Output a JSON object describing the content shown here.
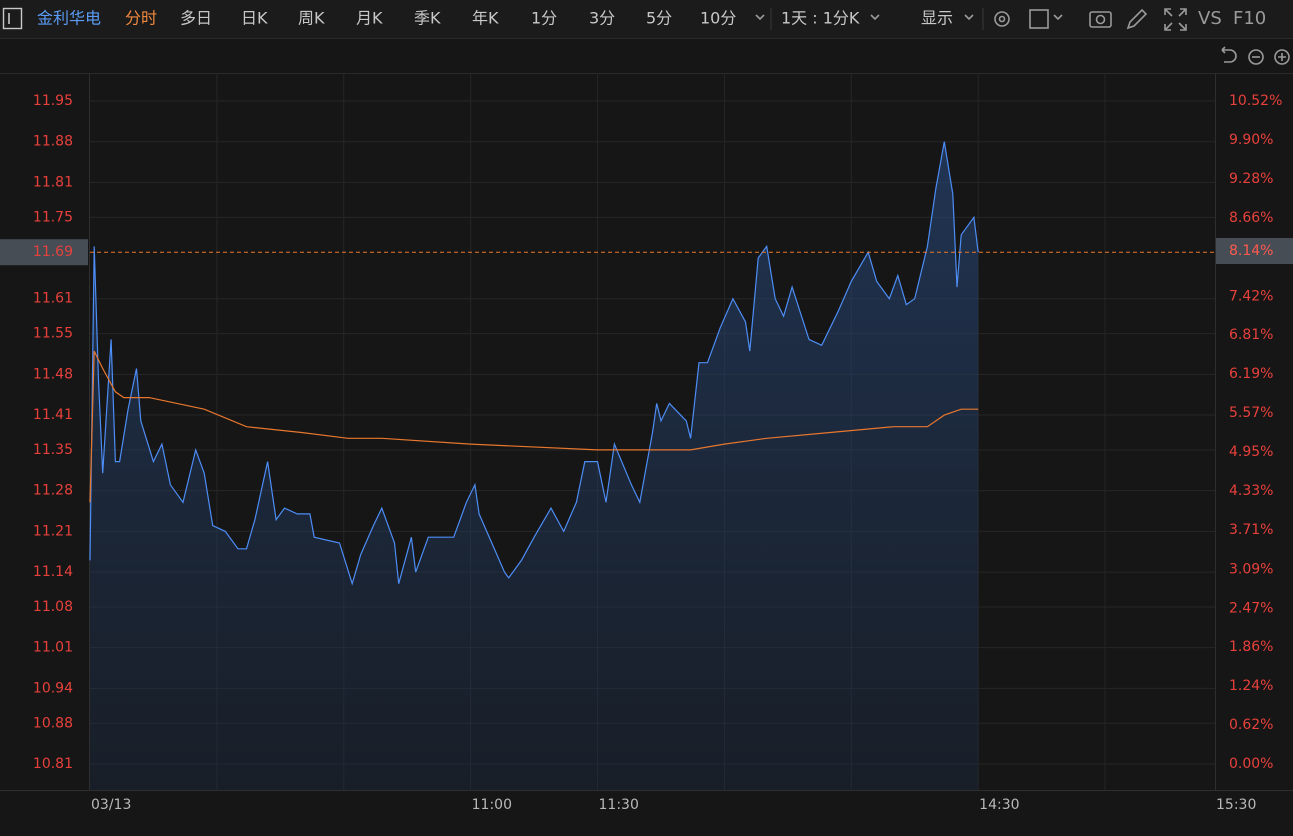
{
  "toolbar": {
    "stock": "金利华电",
    "active": "分时",
    "periods": [
      "多日",
      "日K",
      "周K",
      "月K",
      "季K",
      "年K",
      "1分",
      "3分",
      "5分",
      "10分"
    ],
    "range": "1天 : 1分K",
    "display": "显示",
    "vs": "VS",
    "f10": "F10"
  },
  "chart_data": {
    "type": "line",
    "xlim": [
      0,
      266
    ],
    "xticks": [
      {
        "value": 0,
        "label": "03/13"
      },
      {
        "value": 30,
        "label": null
      },
      {
        "value": 60,
        "label": null
      },
      {
        "value": 90,
        "label": "11:00"
      },
      {
        "value": 120,
        "label": "11:30"
      },
      {
        "value": 150,
        "label": null
      },
      {
        "value": 180,
        "label": null
      },
      {
        "value": 210,
        "label": "14:30"
      },
      {
        "value": 240,
        "label": null
      },
      {
        "value": 266,
        "label": "15:30"
      }
    ],
    "ylim": [
      10.81,
      11.95
    ],
    "yticks": [
      10.81,
      10.88,
      10.94,
      11.01,
      11.08,
      11.14,
      11.21,
      11.28,
      11.35,
      11.41,
      11.48,
      11.55,
      11.61,
      11.75,
      11.81,
      11.88,
      11.95
    ],
    "y2lim": [
      0,
      10.52
    ],
    "y2ticks": [
      {
        "value": 0,
        "label": "0.00%"
      },
      {
        "value": 0.62,
        "label": "0.62%"
      },
      {
        "value": 1.24,
        "label": "1.24%"
      },
      {
        "value": 1.86,
        "label": "1.86%"
      },
      {
        "value": 2.47,
        "label": "2.47%"
      },
      {
        "value": 3.09,
        "label": "3.09%"
      },
      {
        "value": 3.71,
        "label": "3.71%"
      },
      {
        "value": 4.33,
        "label": "4.33%"
      },
      {
        "value": 4.95,
        "label": "4.95%"
      },
      {
        "value": 5.57,
        "label": "5.57%"
      },
      {
        "value": 6.19,
        "label": "6.19%"
      },
      {
        "value": 6.81,
        "label": "6.81%"
      },
      {
        "value": 7.42,
        "label": "7.42%"
      },
      {
        "value": 8.66,
        "label": "8.66%"
      },
      {
        "value": 9.28,
        "label": "9.28%"
      },
      {
        "value": 9.9,
        "label": "9.90%"
      },
      {
        "value": 10.52,
        "label": "10.52%"
      }
    ],
    "current_price": 11.69,
    "current_percent": {
      "value": 8.14,
      "label": "8.14%"
    },
    "grid": true,
    "series": [
      {
        "color": "#4d8df6",
        "x": [
          0,
          1,
          2,
          3,
          5,
          6,
          7,
          9,
          11,
          12,
          15,
          17,
          19,
          22,
          25,
          27,
          29,
          32,
          35,
          37,
          39,
          42,
          44,
          46,
          49,
          52,
          53,
          59,
          62,
          64,
          67,
          69,
          72,
          73,
          76,
          77,
          80,
          86,
          89,
          91,
          92,
          95,
          98,
          99,
          102,
          105,
          109,
          112,
          115,
          117,
          120,
          122,
          124,
          128,
          130,
          133,
          134,
          135,
          137,
          141,
          142,
          144,
          146,
          149,
          152,
          155,
          156,
          158,
          160,
          162,
          164,
          166,
          170,
          173,
          177,
          180,
          184,
          186,
          189,
          191,
          193,
          195,
          198,
          200,
          202,
          204,
          205,
          206,
          209,
          210
        ],
        "values": [
          11.16,
          11.7,
          11.47,
          11.31,
          11.54,
          11.33,
          11.33,
          11.42,
          11.49,
          11.4,
          11.33,
          11.36,
          11.29,
          11.26,
          11.35,
          11.31,
          11.22,
          11.21,
          11.18,
          11.18,
          11.23,
          11.33,
          11.23,
          11.25,
          11.24,
          11.24,
          11.2,
          11.19,
          11.12,
          11.17,
          11.22,
          11.25,
          11.19,
          11.12,
          11.2,
          11.14,
          11.2,
          11.2,
          11.26,
          11.29,
          11.24,
          11.19,
          11.14,
          11.13,
          11.16,
          11.2,
          11.25,
          11.21,
          11.26,
          11.33,
          11.33,
          11.26,
          11.36,
          11.29,
          11.26,
          11.38,
          11.43,
          11.4,
          11.43,
          11.4,
          11.37,
          11.5,
          11.5,
          11.56,
          11.61,
          11.57,
          11.52,
          11.68,
          11.7,
          11.61,
          11.58,
          11.63,
          11.54,
          11.53,
          11.59,
          11.64,
          11.69,
          11.64,
          11.61,
          11.65,
          11.6,
          11.61,
          11.7,
          11.8,
          11.88,
          11.79,
          11.63,
          11.72,
          11.75,
          11.69
        ]
      },
      {
        "color": "#e8772e",
        "x": [
          0,
          1,
          3,
          6,
          8,
          14,
          27,
          37,
          50,
          61,
          69,
          90,
          120,
          142,
          150,
          160,
          175,
          190,
          198,
          202,
          206,
          210
        ],
        "values": [
          11.26,
          11.52,
          11.49,
          11.45,
          11.44,
          11.44,
          11.42,
          11.39,
          11.38,
          11.37,
          11.37,
          11.36,
          11.35,
          11.35,
          11.36,
          11.37,
          11.38,
          11.39,
          11.39,
          11.41,
          11.42,
          11.42
        ]
      }
    ]
  }
}
